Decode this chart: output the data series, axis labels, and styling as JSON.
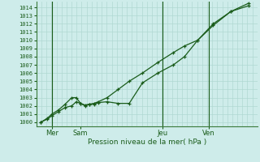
{
  "bg_color": "#ceecea",
  "grid_color": "#b0d8d2",
  "line_color": "#1a5c1a",
  "spine_color": "#3a7a3a",
  "ylim": [
    999.5,
    1014.7
  ],
  "yticks": [
    1000,
    1001,
    1002,
    1003,
    1004,
    1005,
    1006,
    1007,
    1008,
    1009,
    1010,
    1011,
    1012,
    1013,
    1014
  ],
  "xlabel": "Pression niveau de la mer( hPa )",
  "xlim": [
    0,
    100
  ],
  "xtick_positions": [
    7,
    20,
    57,
    78
  ],
  "xtick_labels": [
    "Mer",
    "Sam",
    "Jeu",
    "Ven"
  ],
  "vline_positions": [
    7,
    57,
    78
  ],
  "line1_x": [
    2,
    5,
    7,
    10,
    13,
    16,
    18,
    20,
    22,
    24,
    26,
    28,
    32,
    37,
    42,
    48,
    55,
    62,
    67,
    73,
    80,
    88,
    96
  ],
  "line1_y": [
    1000.0,
    1000.4,
    1000.8,
    1001.3,
    1001.8,
    1002.0,
    1002.5,
    1002.3,
    1002.1,
    1002.2,
    1002.3,
    1002.5,
    1003.0,
    1004.0,
    1005.0,
    1006.0,
    1007.3,
    1008.5,
    1009.3,
    1010.0,
    1011.8,
    1013.5,
    1014.5
  ],
  "line2_x": [
    2,
    5,
    7,
    10,
    13,
    16,
    18,
    20,
    22,
    24,
    26,
    28,
    32,
    37,
    42,
    48,
    55,
    62,
    67,
    73,
    80,
    88,
    96
  ],
  "line2_y": [
    1000.0,
    1000.5,
    1001.0,
    1001.5,
    1002.2,
    1003.0,
    1003.0,
    1002.3,
    1002.0,
    1002.2,
    1002.2,
    1002.4,
    1002.5,
    1002.3,
    1002.3,
    1004.8,
    1006.0,
    1007.0,
    1008.0,
    1010.0,
    1012.0,
    1013.5,
    1014.2
  ]
}
